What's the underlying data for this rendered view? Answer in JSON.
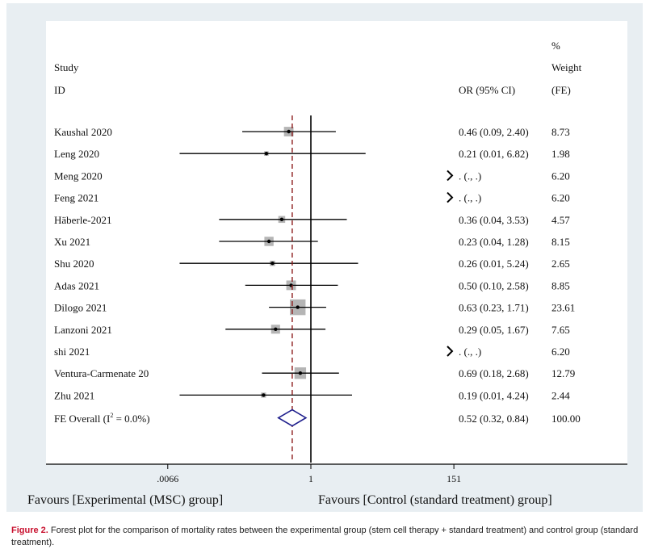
{
  "chart_data": {
    "type": "forest",
    "header": {
      "study_line1": "Study",
      "study_line2": "ID",
      "or": "OR (95% CI)",
      "w1": "%",
      "w2": "Weight",
      "w3": "(FE)"
    },
    "rows": [
      {
        "study": "Kaushal 2020",
        "or": 0.46,
        "lo": 0.09,
        "hi": 2.4,
        "ci": "0.46 (0.09, 2.40)",
        "weight": "8.73",
        "w": 8.73
      },
      {
        "study": "Leng 2020",
        "or": 0.21,
        "lo": 0.01,
        "hi": 6.82,
        "ci": "0.21 (0.01, 6.82)",
        "weight": "1.98",
        "w": 1.98
      },
      {
        "study": "Meng 2020",
        "or": null,
        "ci": ". (., .)",
        "weight": "6.20",
        "w": 6.2
      },
      {
        "study": "Feng 2021",
        "or": null,
        "ci": ". (., .)",
        "weight": "6.20",
        "w": 6.2
      },
      {
        "study": "Häberle-2021",
        "or": 0.36,
        "lo": 0.04,
        "hi": 3.53,
        "ci": "0.36 (0.04, 3.53)",
        "weight": "4.57",
        "w": 4.57
      },
      {
        "study": "Xu 2021",
        "or": 0.23,
        "lo": 0.04,
        "hi": 1.28,
        "ci": "0.23 (0.04, 1.28)",
        "weight": "8.15",
        "w": 8.15
      },
      {
        "study": "Shu 2020",
        "or": 0.26,
        "lo": 0.01,
        "hi": 5.24,
        "ci": "0.26 (0.01, 5.24)",
        "weight": "2.65",
        "w": 2.65
      },
      {
        "study": "Adas 2021",
        "or": 0.5,
        "lo": 0.1,
        "hi": 2.58,
        "ci": "0.50 (0.10, 2.58)",
        "weight": "8.85",
        "w": 8.85
      },
      {
        "study": "Dilogo 2021",
        "or": 0.63,
        "lo": 0.23,
        "hi": 1.71,
        "ci": "0.63 (0.23, 1.71)",
        "weight": "23.61",
        "w": 23.61
      },
      {
        "study": "Lanzoni 2021",
        "or": 0.29,
        "lo": 0.05,
        "hi": 1.67,
        "ci": "0.29 (0.05, 1.67)",
        "weight": "7.65",
        "w": 7.65
      },
      {
        "study": "shi 2021",
        "or": null,
        "ci": ". (., .)",
        "weight": "6.20",
        "w": 6.2
      },
      {
        "study": "Ventura-Carmenate 20",
        "or": 0.69,
        "lo": 0.18,
        "hi": 2.68,
        "ci": "0.69 (0.18, 2.68)",
        "weight": "12.79",
        "w": 12.79
      },
      {
        "study": "Zhu 2021",
        "or": 0.19,
        "lo": 0.01,
        "hi": 4.24,
        "ci": "0.19 (0.01, 4.24)",
        "weight": "2.44",
        "w": 2.44
      }
    ],
    "overall": {
      "label_pre": "FE Overall  (I",
      "sup": "2",
      "label_post": " = 0.0%)",
      "or": 0.52,
      "lo": 0.32,
      "hi": 0.84,
      "ci": "0.52 (0.32, 0.84)",
      "weight": "100.00"
    },
    "x_ticks": [
      {
        "v": 0.0066,
        "label": ".0066"
      },
      {
        "v": 1,
        "label": "1"
      },
      {
        "v": 151,
        "label": "151"
      }
    ],
    "x_scale": "log",
    "favours_left": "Favours [Experimental (MSC) group]",
    "favours_right": "Favours [Control (standard treatment) group]"
  },
  "caption": {
    "label": "Figure 2.",
    "text": " Forest plot for the comparison of mortality rates between the experimental group (stem cell therapy + standard treatment) and control group (standard treatment)."
  }
}
